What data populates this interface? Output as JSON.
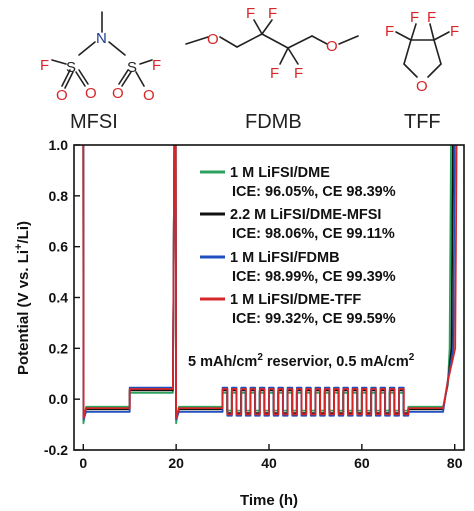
{
  "molecules": [
    {
      "name": "MFSI"
    },
    {
      "name": "FDMB"
    },
    {
      "name": "TFF"
    }
  ],
  "atom_labels": {
    "F": "F",
    "O": "O",
    "S": "S",
    "N": "N"
  },
  "chart_data": {
    "type": "line",
    "xlabel": "Time (h)",
    "ylabel_parts": [
      "Potential (V vs. Li",
      "+",
      "/Li)"
    ],
    "xlim": [
      -2,
      82
    ],
    "ylim": [
      -0.2,
      1.0
    ],
    "xticks": [
      0,
      20,
      40,
      60,
      80
    ],
    "yticks": [
      -0.2,
      0.0,
      0.2,
      0.4,
      0.6,
      0.8,
      1.0
    ],
    "ytick_labels": [
      "-0.2",
      "0.0",
      "0.2",
      "0.4",
      "0.6",
      "0.8",
      "1.0"
    ],
    "legend_position": "top-right",
    "series": [
      {
        "name": "1 M LiFSI/DME",
        "detail": "ICE: 96.05%, CE 98.39%",
        "color": "#2ca25f",
        "base": -0.03,
        "high": 0.025,
        "top": 0.035,
        "low": -0.045,
        "spike": -0.095,
        "end_x": 79.2
      },
      {
        "name": "2.2 M LiFSI/DME-MFSI",
        "detail": "ICE: 98.06%, CE 99.11%",
        "color": "#111111",
        "base": -0.04,
        "high": 0.035,
        "top": 0.045,
        "low": -0.055,
        "spike": -0.07,
        "end_x": 79.6
      },
      {
        "name": "1 M LiFSI/FDMB",
        "detail": "ICE: 98.99%, CE 99.39%",
        "color": "#1f4fbf",
        "base": -0.05,
        "high": 0.045,
        "top": 0.055,
        "low": -0.065,
        "spike": -0.08,
        "end_x": 80.0
      },
      {
        "name": "1 M LiFSI/DME-TFF",
        "detail": "ICE: 99.32%, CE 99.59%",
        "color": "#d62728",
        "base": -0.035,
        "high": 0.04,
        "top": 0.05,
        "low": -0.06,
        "spike": -0.075,
        "end_x": 80.4
      }
    ],
    "annotation": {
      "text_main": "5 mAh/cm",
      "sup1": "2",
      "text_mid": " reservior, 0.5 mA/cm",
      "sup2": "2"
    }
  }
}
